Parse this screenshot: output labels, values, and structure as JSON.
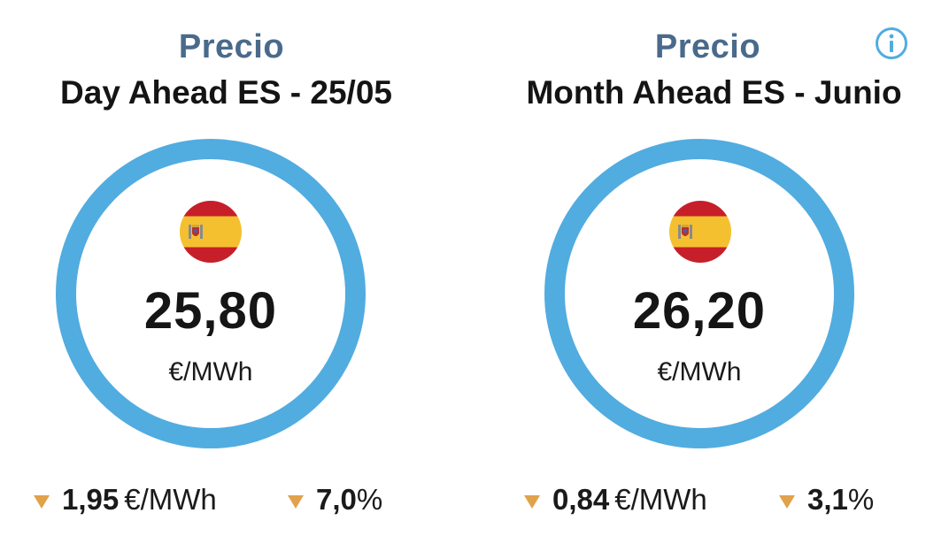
{
  "cards": [
    {
      "kicker": "Precio",
      "title": "Day Ahead ES - 25/05",
      "flag": "spain-flag-icon",
      "value": "25,80",
      "unit": "€/MWh",
      "change_abs": "1,95",
      "change_abs_unit": "€/MWh",
      "change_pct": "7,0",
      "change_pct_unit": "%",
      "direction": "down"
    },
    {
      "kicker": "Precio",
      "title": "Month Ahead ES - Junio",
      "flag": "spain-flag-icon",
      "value": "26,20",
      "unit": "€/MWh",
      "change_abs": "0,84",
      "change_abs_unit": "€/MWh",
      "change_pct": "3,1",
      "change_pct_unit": "%",
      "direction": "down"
    }
  ],
  "info": {
    "icon": "info-icon"
  },
  "colors": {
    "kicker": "#4a6a8c",
    "ring": "#51ace0",
    "arrow": "#e0a24a",
    "flag_red": "#c71f2a",
    "flag_yellow": "#f5c030"
  }
}
